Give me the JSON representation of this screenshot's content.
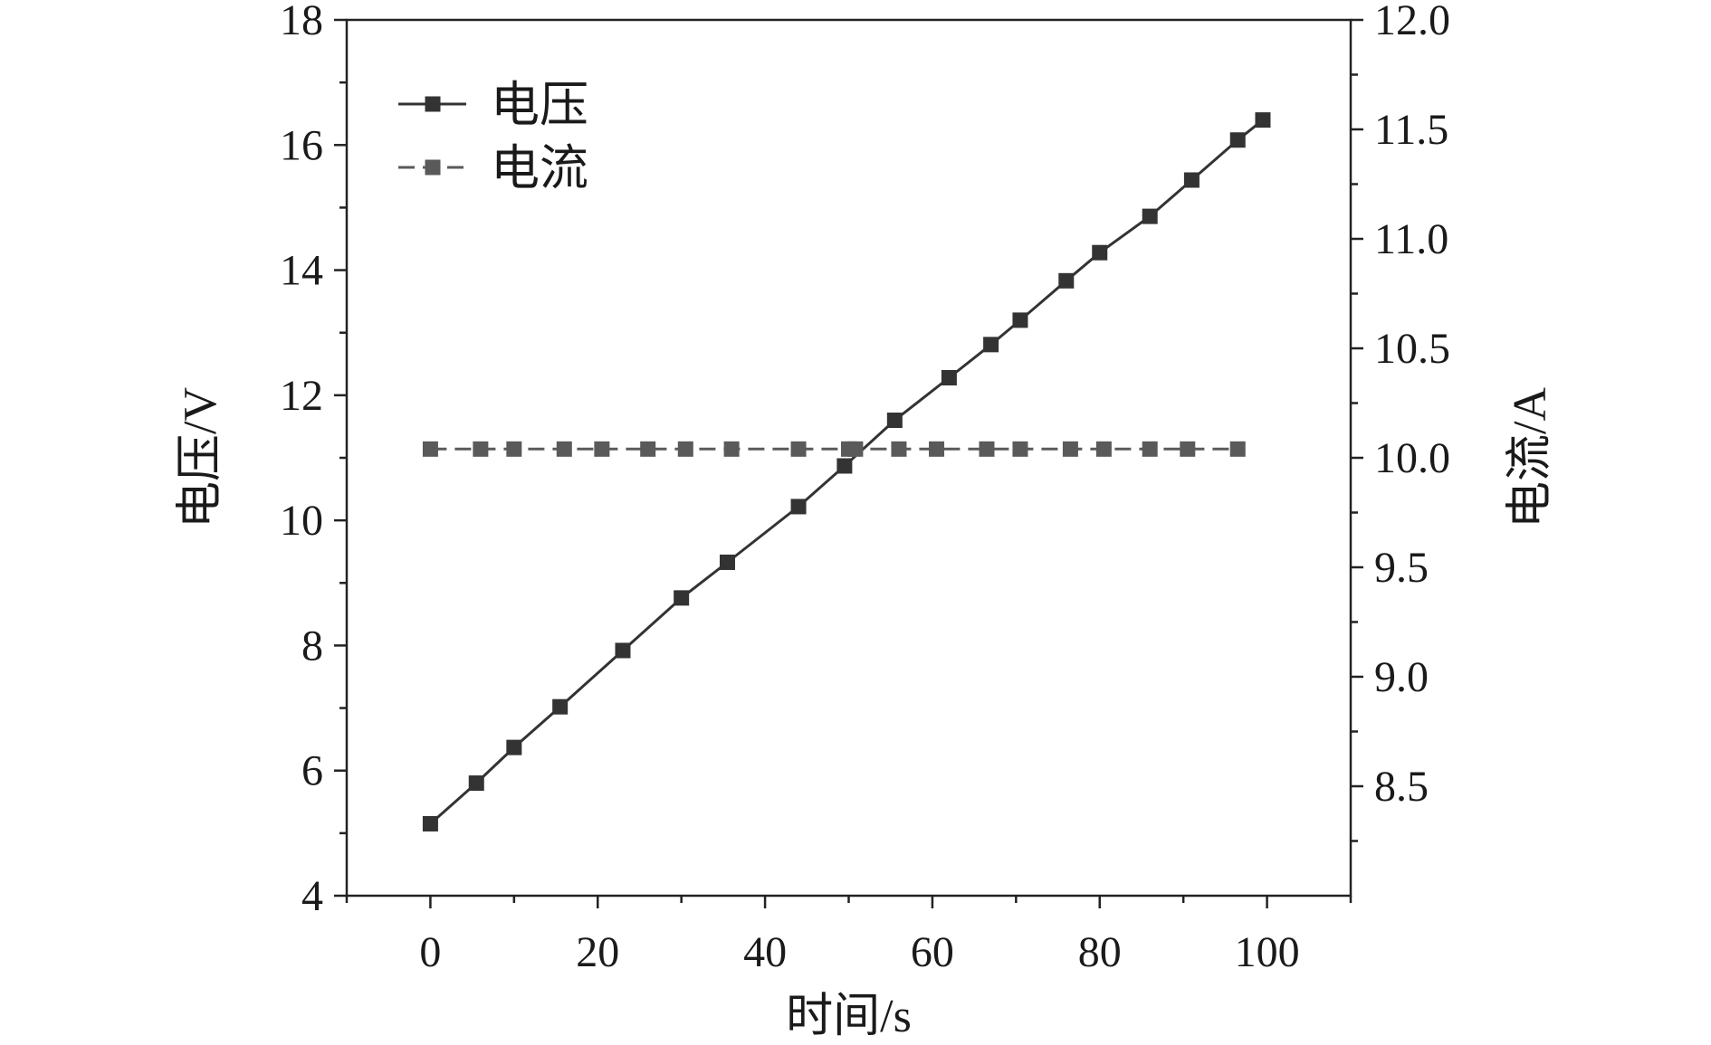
{
  "chart_data": {
    "type": "line",
    "title": "",
    "xlabel": "时间/s",
    "ylabel_left": "电压/V",
    "ylabel_right": "电流/A",
    "xlim": [
      -10,
      110
    ],
    "ylim_left": [
      4,
      18
    ],
    "ylim_right": [
      8.0,
      12.0
    ],
    "x_ticks": [
      0,
      20,
      40,
      60,
      80,
      100
    ],
    "y_left_ticks": [
      4,
      6,
      8,
      10,
      12,
      14,
      16,
      18
    ],
    "y_right_ticks": [
      "8.5",
      "9.0",
      "9.5",
      "10.0",
      "10.5",
      "11.0",
      "11.5",
      "12.0"
    ],
    "grid": false,
    "legend_position": "top-left",
    "series": [
      {
        "name": "电压",
        "axis": "left",
        "color": "#333333",
        "line_style": "solid",
        "marker": "square",
        "x": [
          0,
          5.5,
          10,
          15.5,
          23,
          30,
          35.5,
          44,
          49.5,
          55.5,
          62,
          67,
          70.5,
          76,
          80,
          86,
          91,
          96.5,
          99.5
        ],
        "y": [
          5.15,
          5.8,
          6.37,
          7.02,
          7.92,
          8.76,
          9.33,
          10.22,
          10.87,
          11.6,
          12.28,
          12.81,
          13.2,
          13.83,
          14.28,
          14.86,
          15.44,
          16.08,
          16.4
        ]
      },
      {
        "name": "电流",
        "axis": "right",
        "color": "#5a5a5a",
        "line_style": "dashed",
        "marker": "square",
        "x": [
          0,
          6,
          10,
          16,
          20.5,
          26,
          30.5,
          36,
          44,
          50,
          50.8,
          56,
          60.5,
          66.5,
          70.5,
          76.5,
          80.5,
          86,
          90.5,
          96.5
        ],
        "y": [
          10.04,
          10.04,
          10.04,
          10.04,
          10.04,
          10.04,
          10.04,
          10.04,
          10.04,
          10.04,
          10.04,
          10.04,
          10.04,
          10.04,
          10.04,
          10.04,
          10.04,
          10.04,
          10.04,
          10.04
        ]
      }
    ]
  }
}
